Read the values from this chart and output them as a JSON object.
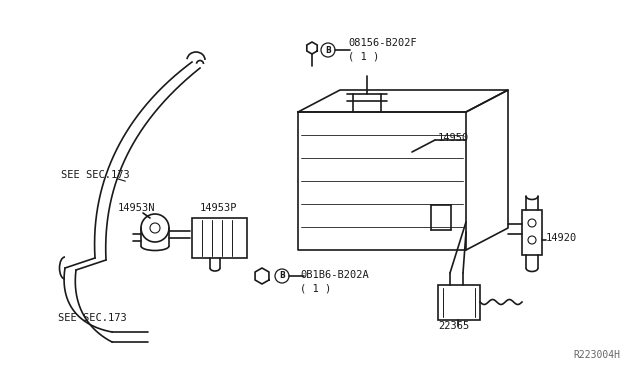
{
  "bg_color": "#ffffff",
  "line_color": "#1a1a1a",
  "text_color": "#1a1a1a",
  "ref_code": "R223004H",
  "labels": {
    "see_sec_173_top": "SEE SEC.173",
    "see_sec_173_bot": "SEE SEC.173",
    "part_14953N": "14953N",
    "part_14953P": "14953P",
    "part_14950": "14950",
    "part_14920": "14920",
    "part_22365": "22365",
    "bolt_08156": "08156-B202F\n( 1 )",
    "bolt_0B1B6": "0B1B6-B202A\n( 1 )"
  }
}
